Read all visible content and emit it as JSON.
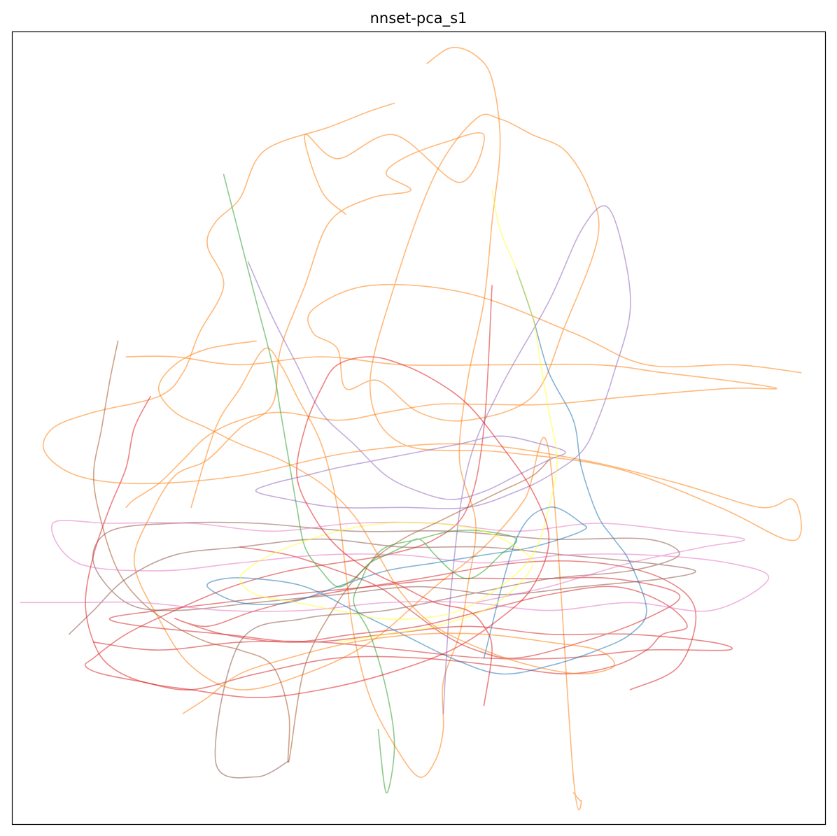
{
  "chart_data": {
    "type": "line",
    "title": "nnset-pca_s1",
    "xlabel": "",
    "ylabel": "",
    "axes_ticks": false,
    "grid": false,
    "legend": false,
    "xlim": [
      0,
      100
    ],
    "ylim": [
      0,
      100
    ],
    "line_alpha": 0.55,
    "series": [
      {
        "color": "#ff7f0e",
        "x": [
          47,
          44,
          39,
          31,
          28,
          25,
          24,
          26,
          23,
          21,
          18,
          10,
          5,
          4,
          8,
          16,
          28,
          42,
          56,
          70,
          82,
          92,
          96,
          97,
          95,
          87,
          74,
          60,
          48,
          44,
          47,
          52,
          57,
          60,
          64,
          68,
          71,
          72,
          68,
          64,
          56,
          50,
          45,
          41,
          40,
          37,
          37,
          44,
          56,
          69,
          78,
          89,
          97
        ],
        "y": [
          91,
          90,
          88,
          85,
          79,
          76,
          73,
          68,
          62,
          57,
          54,
          52,
          50,
          47,
          44,
          43,
          44,
          47,
          48,
          46,
          43,
          40,
          41,
          37,
          36,
          40,
          45,
          47,
          48,
          55,
          68,
          82,
          89,
          89,
          87,
          85,
          80,
          74,
          63,
          54,
          51,
          52,
          56,
          55,
          60,
          62,
          65,
          68,
          67,
          62,
          58,
          58,
          57
        ]
      },
      {
        "color": "#ff7f0e",
        "x": [
          51,
          54,
          57,
          59,
          60,
          59,
          58,
          56,
          55,
          57,
          56,
          55,
          53,
          53,
          52,
          50,
          47,
          44,
          42,
          41,
          40,
          38,
          35,
          33,
          31,
          28,
          25,
          22
        ],
        "y": [
          96,
          98,
          97,
          94,
          86,
          76,
          66,
          56,
          46,
          38,
          30,
          24,
          18,
          12,
          8,
          6,
          10,
          16,
          24,
          32,
          40,
          48,
          54,
          58,
          60,
          55,
          50,
          40
        ]
      },
      {
        "color": "#ff7f0e",
        "x": [
          41,
          38,
          36,
          40,
          47,
          55,
          58,
          53,
          48,
          46,
          49,
          44,
          39,
          36,
          33,
          32,
          28,
          24,
          20,
          17,
          15,
          18,
          22,
          28,
          36,
          44,
          52,
          58,
          63,
          66,
          69,
          70,
          69
        ],
        "y": [
          77,
          80,
          87,
          84,
          87,
          81,
          87,
          86,
          84,
          82,
          80,
          79,
          76,
          68,
          60,
          53,
          50,
          46,
          44,
          39,
          33,
          26,
          20,
          17,
          19,
          23,
          30,
          35,
          41,
          47,
          6,
          3,
          4
        ]
      },
      {
        "color": "#ff7f0e",
        "x": [
          14,
          20,
          28,
          38,
          48,
          60,
          72,
          80,
          88,
          94,
          88,
          76,
          66,
          58,
          52,
          46,
          40,
          33,
          28,
          24,
          21,
          18,
          15,
          14
        ],
        "y": [
          59,
          59,
          58,
          59,
          58,
          58,
          58,
          57,
          56,
          55,
          55,
          54,
          53,
          53,
          53,
          52,
          51,
          52,
          51,
          49,
          46,
          43,
          41,
          40
        ]
      },
      {
        "color": "#d62728",
        "x": [
          59,
          58,
          56,
          52,
          46,
          40,
          34,
          27,
          20,
          14,
          10,
          9,
          11,
          16,
          22,
          30,
          40,
          50,
          60,
          68,
          74,
          78,
          80,
          83,
          80,
          74,
          66,
          58,
          50,
          42,
          34,
          26,
          20,
          24,
          30,
          38,
          50,
          62,
          72,
          80,
          84,
          82,
          76
        ],
        "y": [
          68,
          50,
          40,
          36,
          34,
          33,
          32,
          30,
          27,
          24,
          21,
          20,
          19,
          18,
          17,
          19,
          21,
          21,
          20,
          19,
          20,
          22,
          24,
          25,
          28,
          30,
          29,
          27,
          25,
          24,
          23,
          24,
          26,
          25,
          27,
          29,
          31,
          33,
          33,
          31,
          27,
          20,
          17
        ]
      },
      {
        "color": "#d62728",
        "x": [
          10,
          18,
          28,
          38,
          48,
          58,
          68,
          78,
          88,
          86,
          76,
          66,
          56,
          46,
          36,
          26,
          16,
          12,
          18,
          26,
          34,
          44,
          54,
          64,
          74,
          82,
          78,
          70,
          62,
          57,
          53,
          49,
          45,
          40,
          34,
          28
        ],
        "y": [
          23,
          22,
          23,
          23,
          22,
          21,
          21,
          22,
          22,
          23,
          24,
          24,
          25,
          24,
          23,
          24,
          25,
          26,
          27,
          28,
          29,
          30,
          31,
          31,
          31,
          29,
          26,
          23,
          21,
          22,
          24,
          27,
          30,
          32,
          34,
          35
        ]
      },
      {
        "color": "#8c564b",
        "x": [
          7,
          10,
          14,
          20,
          28,
          38,
          48,
          58,
          68,
          78,
          84,
          80,
          70,
          60,
          50,
          40,
          30,
          20,
          14,
          10,
          12,
          20,
          30,
          42,
          54,
          66,
          78,
          82,
          76,
          66,
          56,
          46,
          36,
          28,
          25,
          30,
          34
        ],
        "y": [
          24,
          27,
          31,
          34,
          35,
          36,
          35,
          35,
          34,
          33,
          32,
          31,
          30,
          29,
          30,
          29,
          28,
          27,
          28,
          33,
          37,
          38,
          38,
          37,
          37,
          36,
          36,
          34,
          32,
          31,
          29,
          27,
          26,
          23,
          8,
          6,
          8
        ]
      },
      {
        "color": "#e377c2",
        "x": [
          1,
          8,
          16,
          26,
          36,
          46,
          56,
          66,
          76,
          86,
          93,
          88,
          78,
          68,
          58,
          48,
          38,
          28,
          18,
          8,
          5,
          12,
          22,
          32,
          42,
          52,
          62,
          72,
          82,
          90,
          85,
          76,
          66,
          57
        ],
        "y": [
          28,
          28,
          28,
          27,
          27,
          28,
          28,
          27,
          28,
          27,
          31,
          33,
          34,
          34,
          33,
          34,
          34,
          33,
          32,
          33,
          38,
          38,
          38,
          37,
          38,
          38,
          37,
          38,
          37,
          36,
          35,
          33,
          30,
          28
        ]
      },
      {
        "color": "#1f77b4",
        "x": [
          62,
          64,
          66,
          69,
          70,
          72,
          74,
          76,
          78,
          76,
          72,
          66,
          60,
          54,
          48,
          42,
          36,
          30,
          26,
          24,
          28,
          34,
          40,
          46,
          52,
          58,
          64,
          70,
          70,
          66,
          62,
          58
        ],
        "y": [
          70,
          64,
          57,
          51,
          45,
          39,
          36,
          33,
          27,
          24,
          22,
          20,
          19,
          21,
          24,
          27,
          30,
          31,
          31,
          30,
          28,
          28,
          30,
          32,
          33,
          34,
          35,
          37,
          38,
          40,
          36,
          21
        ]
      },
      {
        "color": "#2ca02c",
        "x": [
          26,
          28,
          30,
          32,
          33,
          34,
          35,
          36,
          38,
          40,
          42,
          44,
          46,
          48,
          50,
          52,
          54,
          56,
          58,
          60,
          62,
          58,
          54,
          50,
          46,
          44,
          43,
          42,
          44,
          46,
          47,
          46,
          45
        ],
        "y": [
          82,
          74,
          66,
          58,
          52,
          46,
          40,
          35,
          32,
          30,
          31,
          33,
          34,
          35,
          36,
          34,
          32,
          31,
          32,
          34,
          36,
          37,
          37,
          36,
          35,
          33,
          31,
          28,
          24,
          17,
          10,
          4,
          12
        ]
      },
      {
        "color": "#9467bd",
        "x": [
          29,
          32,
          35,
          38,
          42,
          46,
          50,
          54,
          58,
          62,
          66,
          68,
          65,
          60,
          55,
          50,
          45,
          40,
          36,
          32,
          30,
          34,
          40,
          48,
          56,
          62,
          66,
          70,
          72,
          74,
          76,
          75,
          73,
          70,
          66,
          60,
          56,
          54,
          53
        ],
        "y": [
          71,
          64,
          58,
          52,
          48,
          44,
          42,
          41,
          42,
          44,
          46,
          47,
          48,
          49,
          48,
          47,
          46,
          45,
          44,
          43,
          42,
          41,
          40,
          40,
          40,
          42,
          44,
          47,
          51,
          57,
          65,
          73,
          78,
          75,
          66,
          55,
          45,
          30,
          14
        ]
      },
      {
        "color": "#ffff33",
        "x": [
          59,
          60,
          62,
          64,
          65,
          66,
          67,
          66,
          64,
          60,
          55,
          50,
          45,
          40,
          35,
          30,
          28,
          30,
          34,
          40,
          46,
          52,
          58,
          62,
          64,
          62,
          58,
          52,
          46,
          40
        ],
        "y": [
          80,
          75,
          70,
          64,
          58,
          52,
          46,
          40,
          34,
          30,
          27,
          26,
          26,
          27,
          28,
          29,
          31,
          33,
          35,
          37,
          38,
          38,
          37,
          35,
          33,
          30,
          27,
          25,
          24,
          23
        ]
      },
      {
        "color": "#e41a1c",
        "x": [
          17,
          15,
          14,
          12,
          10,
          9,
          10,
          12,
          16,
          22,
          30,
          38,
          46,
          54,
          60,
          64,
          66,
          64,
          60,
          56,
          52,
          48,
          44,
          40,
          38,
          36,
          35,
          37,
          40,
          44,
          48,
          52,
          56,
          58,
          59,
          58
        ],
        "y": [
          54,
          50,
          45,
          40,
          34,
          28,
          23,
          20,
          18,
          17,
          16,
          17,
          19,
          22,
          26,
          30,
          36,
          42,
          48,
          53,
          56,
          58,
          59,
          58,
          55,
          50,
          44,
          39,
          35,
          32,
          30,
          28,
          27,
          25,
          22,
          15
        ]
      },
      {
        "color": "#ff7f0e",
        "x": [
          21,
          24,
          28,
          34,
          42,
          50,
          58,
          66,
          72,
          74,
          70,
          64,
          58,
          52,
          48,
          45,
          42,
          38,
          33,
          28,
          24,
          20,
          18,
          20,
          24,
          30
        ],
        "y": [
          14,
          16,
          19,
          21,
          23,
          24,
          24,
          23,
          22,
          20,
          19,
          20,
          22,
          25,
          29,
          34,
          39,
          43,
          46,
          48,
          50,
          52,
          55,
          58,
          60,
          61
        ]
      },
      {
        "color": "#a65628",
        "x": [
          13,
          12,
          11,
          10,
          11,
          13,
          16,
          20,
          24,
          28,
          32,
          34,
          34,
          36,
          40,
          44,
          48,
          52,
          56,
          60,
          64,
          66
        ],
        "y": [
          61,
          56,
          50,
          44,
          38,
          32,
          28,
          25,
          23,
          22,
          20,
          14,
          8,
          20,
          28,
          33,
          36,
          38,
          40,
          42,
          44,
          46
        ]
      }
    ]
  }
}
